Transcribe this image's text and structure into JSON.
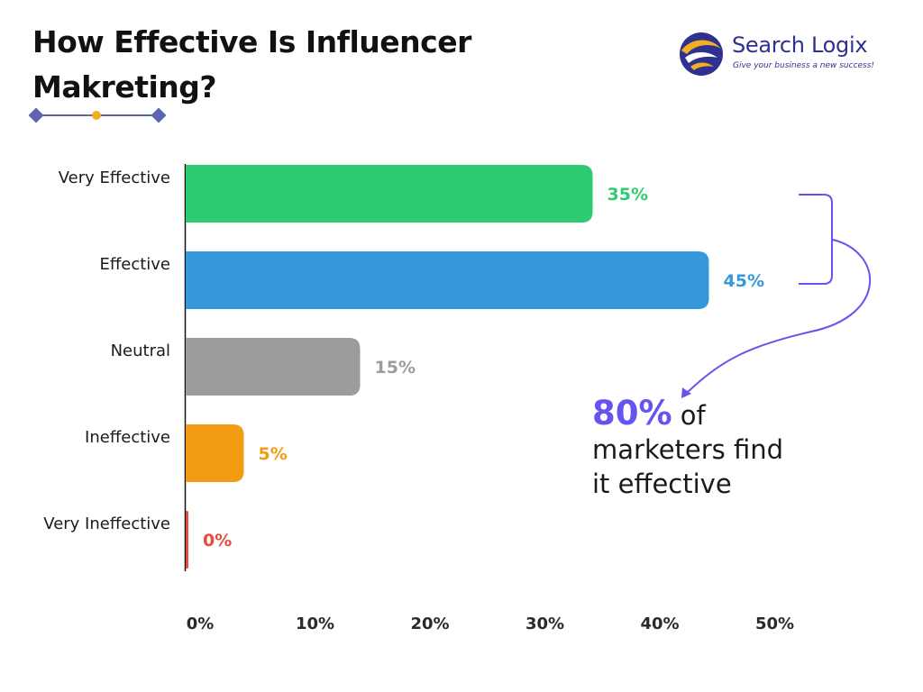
{
  "header": {
    "title_line1": "How Effective Is Influencer",
    "title_line2": "Makreting?"
  },
  "brand": {
    "name": "Search Logix",
    "tagline": "Give your business a new success!",
    "logo_icon": "swirl-logo-icon",
    "colors": {
      "navy": "#2f3190",
      "gold": "#f2b01e"
    }
  },
  "callout": {
    "highlight": "80%",
    "text_line1": "of",
    "text_line2": "marketers find",
    "text_line3": "it effective",
    "color": "#6554ee"
  },
  "chart_data": {
    "type": "bar",
    "orientation": "horizontal",
    "title": "How Effective Is Influencer Makreting?",
    "categories": [
      "Very Effective",
      "Effective",
      "Neutral",
      "Ineffective",
      "Very Ineffective"
    ],
    "values": [
      35,
      45,
      15,
      5,
      0
    ],
    "value_labels": [
      "35%",
      "45%",
      "15%",
      "5%",
      "0%"
    ],
    "colors": [
      "#2ecc71",
      "#3598db",
      "#9c9c9c",
      "#f39c12",
      "#e74c3c"
    ],
    "xlim": [
      0,
      50
    ],
    "xticks": [
      0,
      10,
      20,
      30,
      40,
      50
    ],
    "xtick_labels": [
      "0%",
      "10%",
      "20%",
      "30%",
      "40%",
      "50%"
    ],
    "xlabel": "",
    "ylabel": "",
    "grid": false,
    "legend": "none"
  }
}
